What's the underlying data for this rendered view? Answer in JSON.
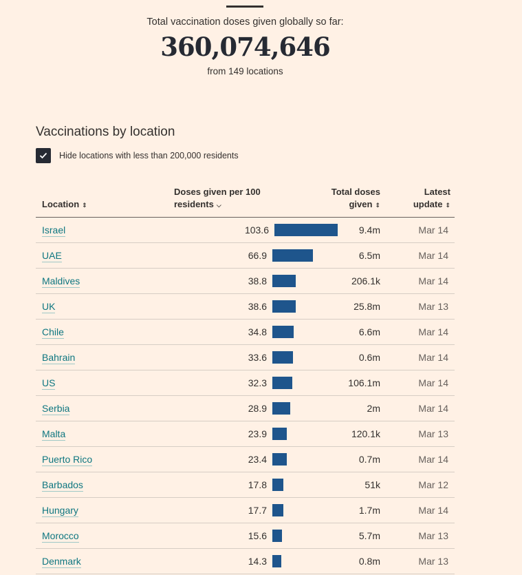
{
  "summary": {
    "label": "Total vaccination doses given globally so far:",
    "total": "360,074,646",
    "from": "from 149 locations"
  },
  "section": {
    "title": "Vaccinations by location",
    "checkbox_label": "Hide locations with less than 200,000 residents",
    "checkbox_checked": true
  },
  "table": {
    "headers": {
      "location": "Location",
      "doses_line1": "Doses given per 100",
      "doses_line2": "residents",
      "total_line1": "Total doses",
      "total_line2": "given",
      "update_line1": "Latest",
      "update_line2": "update"
    },
    "bar_color": "#1e558c",
    "rows": [
      {
        "location": "Israel",
        "per100": 103.6,
        "per100_label": "103.6",
        "total": "9.4m",
        "update": "Mar 14"
      },
      {
        "location": "UAE",
        "per100": 66.9,
        "per100_label": "66.9",
        "total": "6.5m",
        "update": "Mar 14"
      },
      {
        "location": "Maldives",
        "per100": 38.8,
        "per100_label": "38.8",
        "total": "206.1k",
        "update": "Mar 14"
      },
      {
        "location": "UK",
        "per100": 38.6,
        "per100_label": "38.6",
        "total": "25.8m",
        "update": "Mar 13"
      },
      {
        "location": "Chile",
        "per100": 34.8,
        "per100_label": "34.8",
        "total": "6.6m",
        "update": "Mar 14"
      },
      {
        "location": "Bahrain",
        "per100": 33.6,
        "per100_label": "33.6",
        "total": "0.6m",
        "update": "Mar 14"
      },
      {
        "location": "US",
        "per100": 32.3,
        "per100_label": "32.3",
        "total": "106.1m",
        "update": "Mar 14"
      },
      {
        "location": "Serbia",
        "per100": 28.9,
        "per100_label": "28.9",
        "total": "2m",
        "update": "Mar 14"
      },
      {
        "location": "Malta",
        "per100": 23.9,
        "per100_label": "23.9",
        "total": "120.1k",
        "update": "Mar 13"
      },
      {
        "location": "Puerto Rico",
        "per100": 23.4,
        "per100_label": "23.4",
        "total": "0.7m",
        "update": "Mar 14"
      },
      {
        "location": "Barbados",
        "per100": 17.8,
        "per100_label": "17.8",
        "total": "51k",
        "update": "Mar 12"
      },
      {
        "location": "Hungary",
        "per100": 17.7,
        "per100_label": "17.7",
        "total": "1.7m",
        "update": "Mar 14"
      },
      {
        "location": "Morocco",
        "per100": 15.6,
        "per100_label": "15.6",
        "total": "5.7m",
        "update": "Mar 13"
      },
      {
        "location": "Denmark",
        "per100": 14.3,
        "per100_label": "14.3",
        "total": "0.8m",
        "update": "Mar 13"
      }
    ]
  }
}
